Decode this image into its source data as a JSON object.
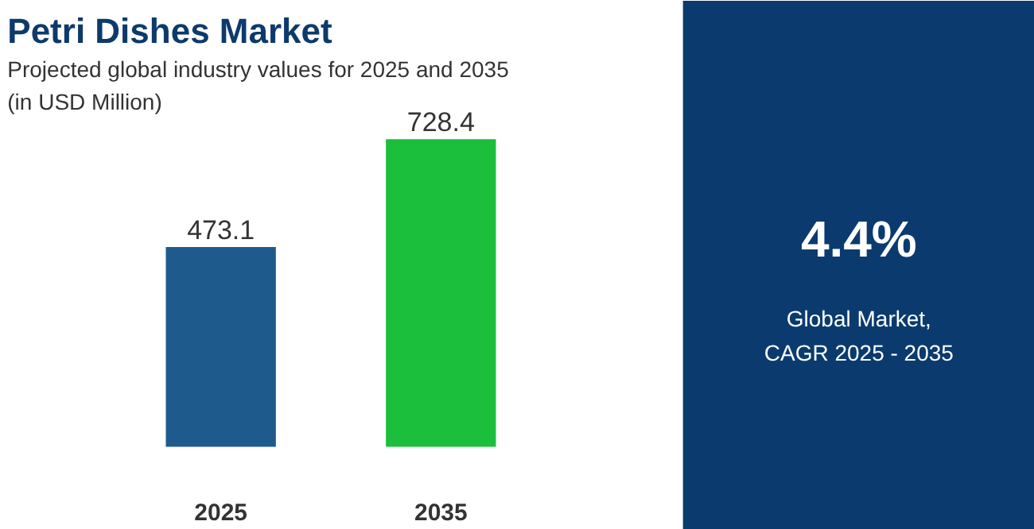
{
  "chart_data": [
    {
      "type": "bar",
      "title": "Petri Dishes Market",
      "subtitle": "Projected global industry values for 2025 and 2035\n(in USD Million)",
      "categories": [
        "2025",
        "2035"
      ],
      "values": [
        473.1,
        728.4
      ],
      "colors": [
        "#1f5a8c",
        "#1cbf3c"
      ],
      "data_labels": true,
      "tick_labels": "x"
    },
    {
      "type": "other",
      "title": "4.4%",
      "annotations": [
        "Global Market,",
        "CAGR 2025 - 2035"
      ]
    }
  ]
}
